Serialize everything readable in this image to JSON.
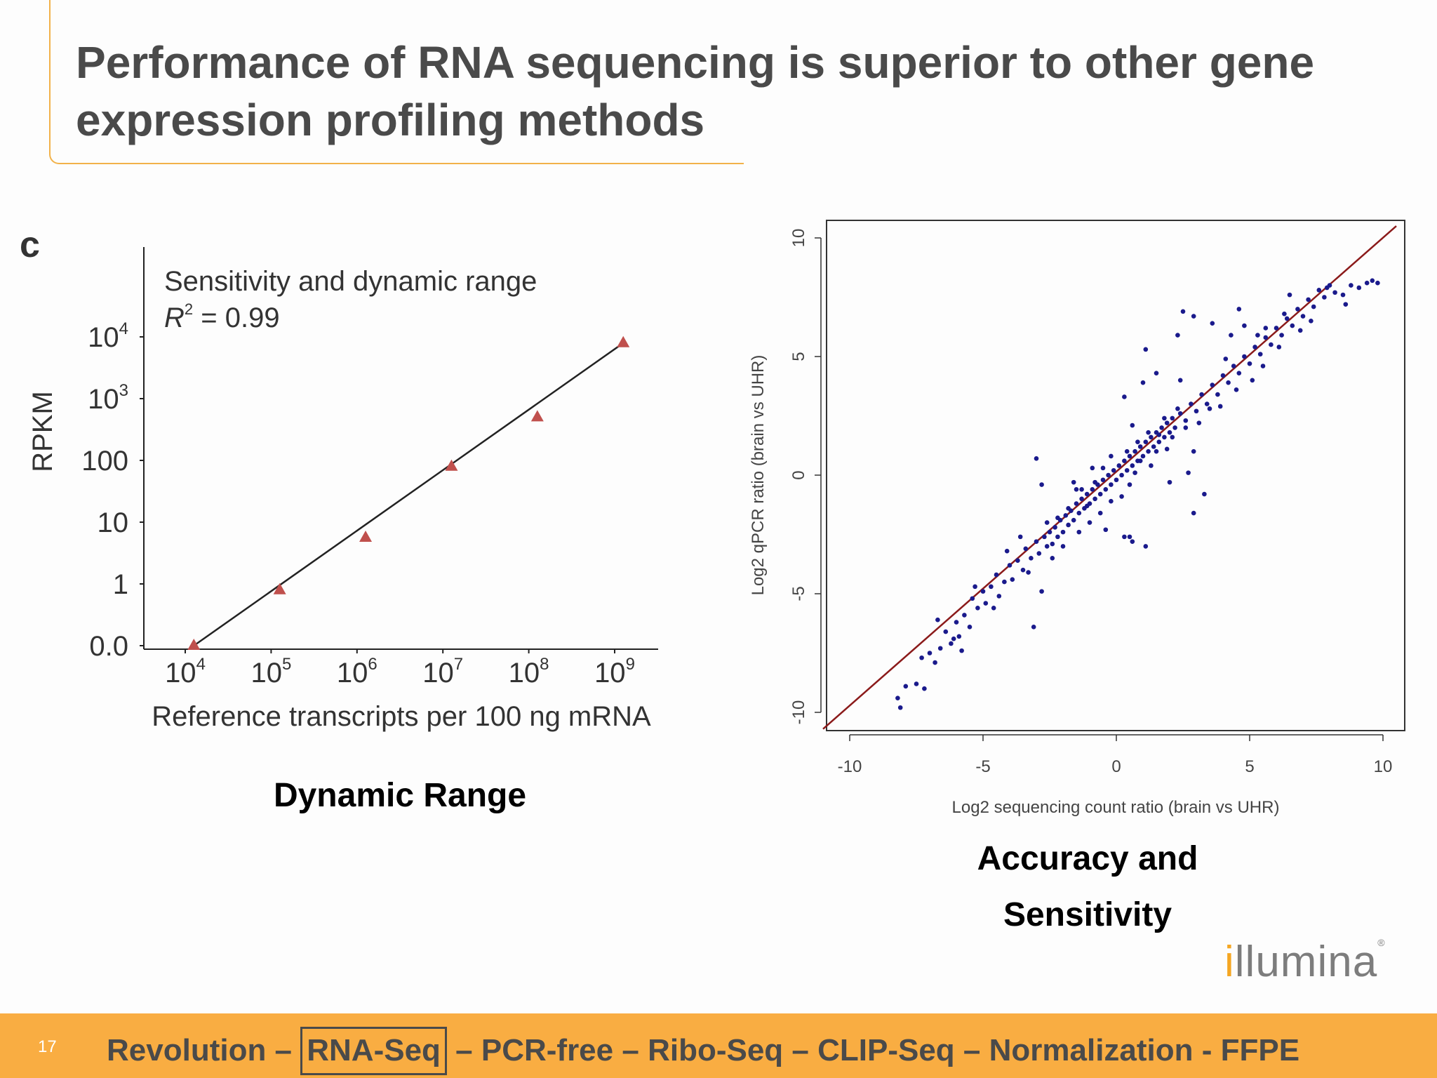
{
  "slide": {
    "title": "Performance of RNA sequencing is superior to other gene expression profiling methods",
    "page_number": "17",
    "captions": {
      "left": "Dynamic Range",
      "right_line1": "Accuracy and",
      "right_line2": "Sensitivity"
    },
    "logo_text": "illumina",
    "footer": {
      "items": [
        "Revolution",
        "RNA-Seq",
        "PCR-free",
        "Ribo-Seq",
        "CLIP-Seq",
        "Normalization",
        "FFPE"
      ],
      "separators": [
        " – ",
        " – ",
        " – ",
        " – ",
        " – ",
        " - "
      ],
      "highlighted": "RNA-Seq"
    },
    "colors": {
      "accent": "#f9ad42",
      "frame": "#f2b24a",
      "title_text": "#4a4a4a",
      "triangle": "#c0504d",
      "scatter_point": "#1a1a8c",
      "fit_line": "#8b1a1a"
    }
  },
  "chart_data": [
    {
      "type": "scatter",
      "panel_label": "c",
      "annotation": "Sensitivity and dynamic range",
      "r2_label": "R",
      "r2_value": "= 0.99",
      "xlabel": "Reference transcripts per 100 ng mRNA",
      "ylabel": "RPKM",
      "x_scale": "log",
      "x_ticks": [
        {
          "base": "10",
          "exp": "4"
        },
        {
          "base": "10",
          "exp": "5"
        },
        {
          "base": "10",
          "exp": "6"
        },
        {
          "base": "10",
          "exp": "7"
        },
        {
          "base": "10",
          "exp": "8"
        },
        {
          "base": "10",
          "exp": "9"
        }
      ],
      "y_ticks": [
        {
          "base": "10",
          "exp": "4"
        },
        {
          "base": "10",
          "exp": "3"
        },
        {
          "base": "100",
          "exp": ""
        },
        {
          "base": "10",
          "exp": ""
        },
        {
          "base": "1",
          "exp": ""
        },
        {
          "base": "0.0",
          "exp": ""
        }
      ],
      "points_log10": [
        {
          "x": 4.1,
          "y": -1.0
        },
        {
          "x": 5.1,
          "y": -0.1
        },
        {
          "x": 6.1,
          "y": 0.75
        },
        {
          "x": 7.1,
          "y": 1.9
        },
        {
          "x": 8.1,
          "y": 2.7
        },
        {
          "x": 9.1,
          "y": 3.9
        }
      ],
      "fit_line_log10": [
        {
          "x": 4.1,
          "y": -1.0
        },
        {
          "x": 9.1,
          "y": 3.9
        }
      ]
    },
    {
      "type": "scatter",
      "xlabel": "Log2 sequencing count ratio (brain vs UHR)",
      "ylabel": "Log2 qPCR ratio (brain vs UHR)",
      "xlim": [
        -11,
        10.5
      ],
      "ylim": [
        -10.7,
        10.8
      ],
      "x_ticks": [
        "-10",
        "-5",
        "0",
        "5",
        "10"
      ],
      "y_ticks": [
        "-10",
        "-5",
        "0",
        "5",
        "10"
      ],
      "fit_line": [
        {
          "x": -11,
          "y": -10.7
        },
        {
          "x": 10.5,
          "y": 10.5
        }
      ],
      "points": [
        [
          -8.2,
          -9.4
        ],
        [
          -8.1,
          -9.8
        ],
        [
          -7.9,
          -8.9
        ],
        [
          -7.5,
          -8.8
        ],
        [
          -7.2,
          -9.0
        ],
        [
          -7.0,
          -7.5
        ],
        [
          -6.8,
          -7.9
        ],
        [
          -6.6,
          -7.3
        ],
        [
          -6.4,
          -6.6
        ],
        [
          -6.2,
          -7.1
        ],
        [
          -6.0,
          -6.2
        ],
        [
          -5.9,
          -6.8
        ],
        [
          -5.7,
          -5.9
        ],
        [
          -5.5,
          -6.4
        ],
        [
          -5.4,
          -5.2
        ],
        [
          -5.2,
          -5.6
        ],
        [
          -5.0,
          -4.9
        ],
        [
          -4.9,
          -5.4
        ],
        [
          -4.7,
          -4.7
        ],
        [
          -4.5,
          -4.2
        ],
        [
          -4.4,
          -5.1
        ],
        [
          -4.2,
          -4.5
        ],
        [
          -4.0,
          -3.8
        ],
        [
          -3.9,
          -4.4
        ],
        [
          -3.7,
          -3.6
        ],
        [
          -3.5,
          -4.0
        ],
        [
          -3.4,
          -3.1
        ],
        [
          -3.2,
          -3.5
        ],
        [
          -3.0,
          -2.8
        ],
        [
          -2.9,
          -3.3
        ],
        [
          -2.8,
          -4.9
        ],
        [
          -3.1,
          -6.4
        ],
        [
          -2.7,
          -2.6
        ],
        [
          -2.6,
          -3.0
        ],
        [
          -2.5,
          -2.4
        ],
        [
          -2.4,
          -2.9
        ],
        [
          -2.3,
          -2.2
        ],
        [
          -2.2,
          -2.6
        ],
        [
          -2.1,
          -1.9
        ],
        [
          -2.0,
          -2.4
        ],
        [
          -1.9,
          -1.7
        ],
        [
          -1.8,
          -2.1
        ],
        [
          -1.7,
          -1.5
        ],
        [
          -1.6,
          -1.9
        ],
        [
          -1.5,
          -1.2
        ],
        [
          -1.4,
          -1.6
        ],
        [
          -1.3,
          -1.0
        ],
        [
          -1.2,
          -1.4
        ],
        [
          -1.1,
          -0.8
        ],
        [
          -1.0,
          -1.2
        ],
        [
          -0.9,
          -0.6
        ],
        [
          -0.8,
          -1.0
        ],
        [
          -0.7,
          -0.4
        ],
        [
          -0.6,
          -0.8
        ],
        [
          -0.5,
          -0.2
        ],
        [
          -0.4,
          -0.6
        ],
        [
          -0.3,
          0.0
        ],
        [
          -0.2,
          -0.4
        ],
        [
          -0.1,
          0.2
        ],
        [
          0.0,
          -0.2
        ],
        [
          0.1,
          0.4
        ],
        [
          0.2,
          0.0
        ],
        [
          0.3,
          0.6
        ],
        [
          0.4,
          0.2
        ],
        [
          0.5,
          0.8
        ],
        [
          0.6,
          0.4
        ],
        [
          0.7,
          1.0
        ],
        [
          0.8,
          0.6
        ],
        [
          0.9,
          1.2
        ],
        [
          1.0,
          0.8
        ],
        [
          1.1,
          1.4
        ],
        [
          1.2,
          1.0
        ],
        [
          1.3,
          1.6
        ],
        [
          1.4,
          1.2
        ],
        [
          1.5,
          1.8
        ],
        [
          1.6,
          1.4
        ],
        [
          1.7,
          2.0
        ],
        [
          1.8,
          1.6
        ],
        [
          1.9,
          2.2
        ],
        [
          2.0,
          1.8
        ],
        [
          2.1,
          2.4
        ],
        [
          2.2,
          2.0
        ],
        [
          2.4,
          2.6
        ],
        [
          2.6,
          2.3
        ],
        [
          2.8,
          3.0
        ],
        [
          3.0,
          2.7
        ],
        [
          3.2,
          3.4
        ],
        [
          3.4,
          3.0
        ],
        [
          3.6,
          3.8
        ],
        [
          3.8,
          3.4
        ],
        [
          4.0,
          4.2
        ],
        [
          4.2,
          3.9
        ],
        [
          4.4,
          4.6
        ],
        [
          4.6,
          4.3
        ],
        [
          4.8,
          5.0
        ],
        [
          5.0,
          4.7
        ],
        [
          5.2,
          5.4
        ],
        [
          5.4,
          5.1
        ],
        [
          5.6,
          5.8
        ],
        [
          5.8,
          5.5
        ],
        [
          6.0,
          6.2
        ],
        [
          6.2,
          5.9
        ],
        [
          6.4,
          6.6
        ],
        [
          6.6,
          6.3
        ],
        [
          6.8,
          7.0
        ],
        [
          7.0,
          6.7
        ],
        [
          7.2,
          7.4
        ],
        [
          7.4,
          7.1
        ],
        [
          7.6,
          7.8
        ],
        [
          7.8,
          7.5
        ],
        [
          8.0,
          8.0
        ],
        [
          8.2,
          7.7
        ],
        [
          8.5,
          7.6
        ],
        [
          8.8,
          8.0
        ],
        [
          9.1,
          7.9
        ],
        [
          9.4,
          8.1
        ],
        [
          9.6,
          8.2
        ],
        [
          9.8,
          8.1
        ],
        [
          8.6,
          7.2
        ],
        [
          7.9,
          7.9
        ],
        [
          2.5,
          6.9
        ],
        [
          2.9,
          6.7
        ],
        [
          4.6,
          7.0
        ],
        [
          4.8,
          6.3
        ],
        [
          6.5,
          7.6
        ],
        [
          5.6,
          6.2
        ],
        [
          4.3,
          5.9
        ],
        [
          2.3,
          5.9
        ],
        [
          3.6,
          6.4
        ],
        [
          1.1,
          5.3
        ],
        [
          1.0,
          3.9
        ],
        [
          1.5,
          4.3
        ],
        [
          2.4,
          4.0
        ],
        [
          0.3,
          3.3
        ],
        [
          0.6,
          2.1
        ],
        [
          0.4,
          1.0
        ],
        [
          2.9,
          1.0
        ],
        [
          2.7,
          0.1
        ],
        [
          2.0,
          -0.3
        ],
        [
          3.3,
          -0.8
        ],
        [
          2.9,
          -1.6
        ],
        [
          0.3,
          -2.6
        ],
        [
          0.6,
          -2.8
        ],
        [
          1.1,
          -3.0
        ],
        [
          -1.5,
          -0.6
        ],
        [
          -2.8,
          -0.4
        ],
        [
          -1.1,
          -1.3
        ],
        [
          -0.4,
          -2.3
        ],
        [
          0.5,
          -2.6
        ],
        [
          -3.0,
          0.7
        ],
        [
          -0.2,
          0.8
        ],
        [
          -0.5,
          0.3
        ],
        [
          -0.8,
          -0.3
        ],
        [
          -1.3,
          -0.6
        ],
        [
          -1.6,
          -0.3
        ],
        [
          -0.9,
          0.3
        ],
        [
          0.8,
          1.4
        ],
        [
          1.3,
          0.4
        ],
        [
          1.6,
          1.7
        ],
        [
          1.9,
          1.1
        ],
        [
          -0.6,
          -1.6
        ],
        [
          -0.2,
          -1.1
        ],
        [
          0.2,
          -0.9
        ],
        [
          0.5,
          -0.4
        ],
        [
          -1.0,
          -2.0
        ],
        [
          -1.4,
          -2.4
        ],
        [
          -1.8,
          -1.4
        ],
        [
          -2.2,
          -1.8
        ],
        [
          -2.6,
          -2.0
        ],
        [
          -2.0,
          -3.0
        ],
        [
          0.7,
          0.1
        ],
        [
          0.9,
          0.6
        ],
        [
          1.2,
          1.8
        ],
        [
          1.5,
          1.0
        ],
        [
          1.8,
          2.4
        ],
        [
          2.1,
          1.6
        ],
        [
          2.3,
          2.8
        ],
        [
          2.6,
          2.0
        ],
        [
          3.1,
          2.2
        ],
        [
          3.5,
          2.8
        ],
        [
          -4.6,
          -5.6
        ],
        [
          -5.3,
          -4.7
        ],
        [
          -6.1,
          -6.9
        ],
        [
          -6.7,
          -6.1
        ],
        [
          -7.3,
          -7.7
        ],
        [
          -5.8,
          -7.4
        ],
        [
          -4.1,
          -3.2
        ],
        [
          -3.6,
          -2.6
        ],
        [
          -3.3,
          -4.1
        ],
        [
          -2.4,
          -3.5
        ],
        [
          4.5,
          3.6
        ],
        [
          5.1,
          4.0
        ],
        [
          5.5,
          4.6
        ],
        [
          6.1,
          5.4
        ],
        [
          6.9,
          6.1
        ],
        [
          7.3,
          6.5
        ],
        [
          3.9,
          2.9
        ],
        [
          4.1,
          4.9
        ],
        [
          5.3,
          5.9
        ],
        [
          6.3,
          6.8
        ]
      ]
    }
  ]
}
